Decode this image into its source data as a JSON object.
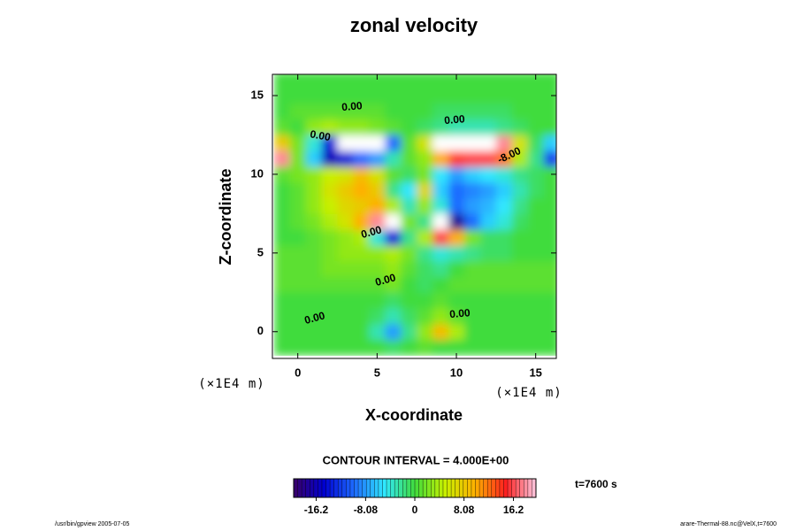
{
  "chart_data": {
    "type": "heatmap",
    "title": "zonal velocity",
    "xlabel": "X-coordinate",
    "ylabel": "Z-coordinate",
    "xunit": "(×1E4 m)",
    "yunit": "(×1E4 m)",
    "contour_note": "CONTOUR INTERVAL = 4.000E+00",
    "time_label": "t=7600 s",
    "footer_left": "/usr/bin/gpview 2005-07-05",
    "footer_right": "arare-Thermal-88.nc@VelX,t=7600",
    "xlim": [
      -1.6,
      16.3
    ],
    "ylim": [
      -1.7,
      16.35
    ],
    "xticks": [
      0,
      5,
      10,
      15
    ],
    "yticks": [
      0,
      5,
      10,
      15
    ],
    "clim": [
      -19.9,
      19.9
    ],
    "colorbar_ticks": [
      -16.2,
      -8.08,
      0,
      8.08,
      16.2
    ],
    "colormap": [
      "#3a0068",
      "#0000d0",
      "#1e6cff",
      "#30e8ff",
      "#40dc3c",
      "#c8f000",
      "#ffb000",
      "#ff2020",
      "#ffc8e0"
    ],
    "out_of_range_color": "#ffffff",
    "annotations": [
      "0.00",
      "0.00",
      "0.00",
      "0.00",
      "0.00",
      "0.00",
      "0.00",
      "-8.00"
    ],
    "x": [
      -1,
      0,
      1,
      2,
      3,
      4,
      5,
      6,
      7,
      8,
      9,
      10,
      11,
      12,
      13,
      14,
      15,
      16
    ],
    "y": [
      -1,
      0,
      1,
      2,
      3,
      4,
      5,
      6,
      7,
      8,
      9,
      10,
      11,
      12,
      13,
      14,
      15,
      16
    ],
    "z": [
      [
        0,
        0,
        0,
        0,
        0,
        0,
        0,
        -1,
        0,
        1,
        0,
        0,
        0,
        0,
        0,
        0,
        0,
        0
      ],
      [
        0,
        0,
        0,
        0,
        0,
        0,
        -3,
        -8,
        -2,
        3,
        9,
        4,
        0,
        0,
        0,
        0,
        0,
        0
      ],
      [
        0,
        0,
        0,
        0,
        0,
        0,
        -1,
        -3,
        -1,
        1,
        3,
        1,
        0,
        0,
        0,
        0,
        0,
        0
      ],
      [
        0,
        0,
        0,
        0,
        0,
        0,
        0,
        -1,
        0,
        0,
        1,
        0,
        0,
        0,
        0,
        0,
        0,
        0
      ],
      [
        1,
        1,
        1,
        1,
        1,
        1,
        1,
        2,
        0,
        -1,
        0,
        1,
        1,
        1,
        1,
        1,
        1,
        1
      ],
      [
        1,
        1,
        1,
        2,
        2,
        2,
        2,
        3,
        1,
        -1,
        -2,
        0,
        1,
        1,
        1,
        1,
        1,
        1
      ],
      [
        1,
        1,
        1,
        2,
        3,
        3,
        3,
        4,
        2,
        -2,
        -4,
        -3,
        -2,
        -1,
        -1,
        0,
        0,
        0
      ],
      [
        0,
        0,
        1,
        2,
        3,
        4,
        -4,
        -14,
        -2,
        4,
        16,
        10,
        2,
        -1,
        -1,
        0,
        0,
        0
      ],
      [
        0,
        1,
        2,
        4,
        6,
        10,
        18,
        22,
        2,
        -2,
        -22,
        -18,
        -10,
        -6,
        -4,
        -1,
        0,
        0
      ],
      [
        0,
        1,
        3,
        5,
        7,
        8,
        10,
        4,
        -3,
        3,
        -4,
        -10,
        -8,
        -7,
        -5,
        -2,
        0,
        0
      ],
      [
        0,
        1,
        3,
        6,
        8,
        10,
        8,
        -2,
        -5,
        7,
        -6,
        -10,
        -9,
        -8,
        -6,
        -3,
        -1,
        0
      ],
      [
        1,
        2,
        3,
        5,
        6,
        9,
        6,
        1,
        -1,
        2,
        -5,
        -8,
        -6,
        -5,
        -4,
        -2,
        -1,
        0
      ],
      [
        18,
        2,
        -6,
        -16,
        -14,
        -10,
        -8,
        -3,
        1,
        3,
        10,
        14,
        16,
        16,
        12,
        4,
        -2,
        -12
      ],
      [
        8,
        2,
        -4,
        -14,
        -22,
        -24,
        -22,
        -10,
        1,
        6,
        20,
        24,
        24,
        22,
        18,
        6,
        -1,
        -6
      ],
      [
        1,
        0,
        3,
        4,
        3,
        3,
        2,
        1,
        0,
        -1,
        -2,
        -3,
        -3,
        -3,
        -2,
        -1,
        0,
        0
      ],
      [
        0,
        1,
        1,
        1,
        1,
        1,
        1,
        0,
        0,
        0,
        -1,
        -1,
        -1,
        -1,
        -1,
        0,
        0,
        0
      ],
      [
        0,
        0,
        0,
        0,
        0,
        0,
        0,
        0,
        0,
        0,
        0,
        0,
        0,
        0,
        0,
        0,
        0,
        0
      ],
      [
        0,
        0,
        0,
        0,
        0,
        0,
        0,
        0,
        0,
        0,
        0,
        0,
        0,
        0,
        0,
        0,
        0,
        0
      ]
    ]
  }
}
